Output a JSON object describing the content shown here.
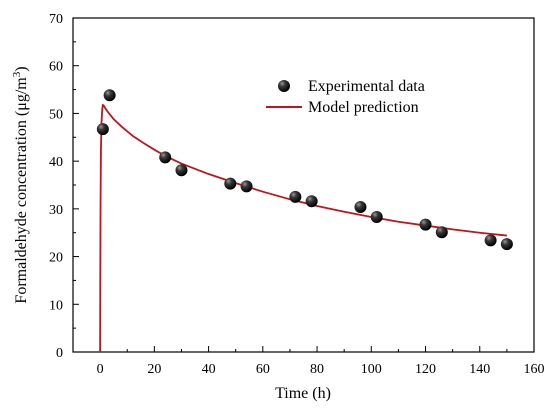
{
  "chart_data": {
    "type": "scatter",
    "xlabel": "Time (h)",
    "ylabel_main": "Formaldehyde concentration (",
    "ylabel_unit_prefix": "μg/m",
    "ylabel_unit_sup": "3",
    "ylabel_close": ")",
    "xlim": [
      -10,
      160
    ],
    "ylim": [
      0,
      70
    ],
    "xticks": [
      0,
      20,
      40,
      60,
      80,
      100,
      120,
      140,
      160
    ],
    "yticks": [
      0,
      10,
      20,
      30,
      40,
      50,
      60,
      70
    ],
    "grid": false,
    "legend_position": "upper-right",
    "series": [
      {
        "name": "Experimental data",
        "kind": "scatter",
        "color": "#1a1a1a",
        "points": [
          [
            1,
            46.7
          ],
          [
            3.5,
            53.8
          ],
          [
            24,
            40.8
          ],
          [
            30,
            38.1
          ],
          [
            48,
            35.3
          ],
          [
            54,
            34.7
          ],
          [
            72,
            32.5
          ],
          [
            78,
            31.6
          ],
          [
            96,
            30.4
          ],
          [
            102,
            28.3
          ],
          [
            120,
            26.7
          ],
          [
            126,
            25.1
          ],
          [
            144,
            23.4
          ],
          [
            150,
            22.6
          ]
        ]
      },
      {
        "name": "Model prediction",
        "kind": "line",
        "color": "#c0141e",
        "points": [
          [
            0,
            0
          ],
          [
            0.05,
            13
          ],
          [
            0.15,
            30
          ],
          [
            0.3,
            42
          ],
          [
            0.5,
            48
          ],
          [
            0.8,
            51
          ],
          [
            1,
            51.8
          ],
          [
            1.5,
            51.5
          ],
          [
            2,
            51
          ],
          [
            3,
            50.2
          ],
          [
            5,
            48.8
          ],
          [
            8,
            47.2
          ],
          [
            12,
            45.3
          ],
          [
            16,
            43.8
          ],
          [
            20,
            42.4
          ],
          [
            24,
            41.1
          ],
          [
            30,
            39.5
          ],
          [
            40,
            37.3
          ],
          [
            50,
            35.4
          ],
          [
            60,
            33.6
          ],
          [
            70,
            32
          ],
          [
            80,
            30.6
          ],
          [
            90,
            29.4
          ],
          [
            100,
            28.3
          ],
          [
            110,
            27.3
          ],
          [
            120,
            26.5
          ],
          [
            130,
            25.7
          ],
          [
            140,
            25
          ],
          [
            150,
            24.4
          ]
        ]
      }
    ]
  }
}
